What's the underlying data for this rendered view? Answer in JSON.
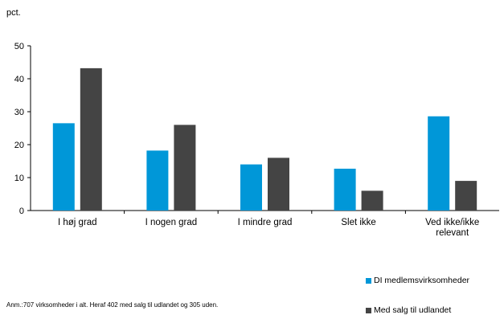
{
  "chart_data": {
    "type": "bar",
    "unit_label": "pct.",
    "categories": [
      "I høj grad",
      "I nogen grad",
      "I mindre grad",
      "Slet ikke",
      "Ved ikke/ikke relevant"
    ],
    "category_lines": [
      [
        "I høj grad"
      ],
      [
        "I nogen grad"
      ],
      [
        "I mindre grad"
      ],
      [
        "Slet ikke"
      ],
      [
        "Ved ikke/ikke",
        "relevant"
      ]
    ],
    "series": [
      {
        "name": "DI medlemsvirksomheder",
        "values": [
          26.5,
          18.2,
          14.0,
          12.7,
          28.6
        ],
        "color": "#0097d8"
      },
      {
        "name": "Med salg til udlandet",
        "values": [
          43.2,
          26.0,
          16.0,
          6.0,
          9.0
        ],
        "color": "#444444"
      }
    ],
    "ylim": [
      0,
      50
    ],
    "yticks": [
      0,
      10,
      20,
      30,
      40,
      50
    ],
    "grid": false,
    "legend_position": "bottom-right"
  },
  "note": "Anm.:707 virksomheder i alt. Heraf 402 med salg til udlandet og 305 uden."
}
